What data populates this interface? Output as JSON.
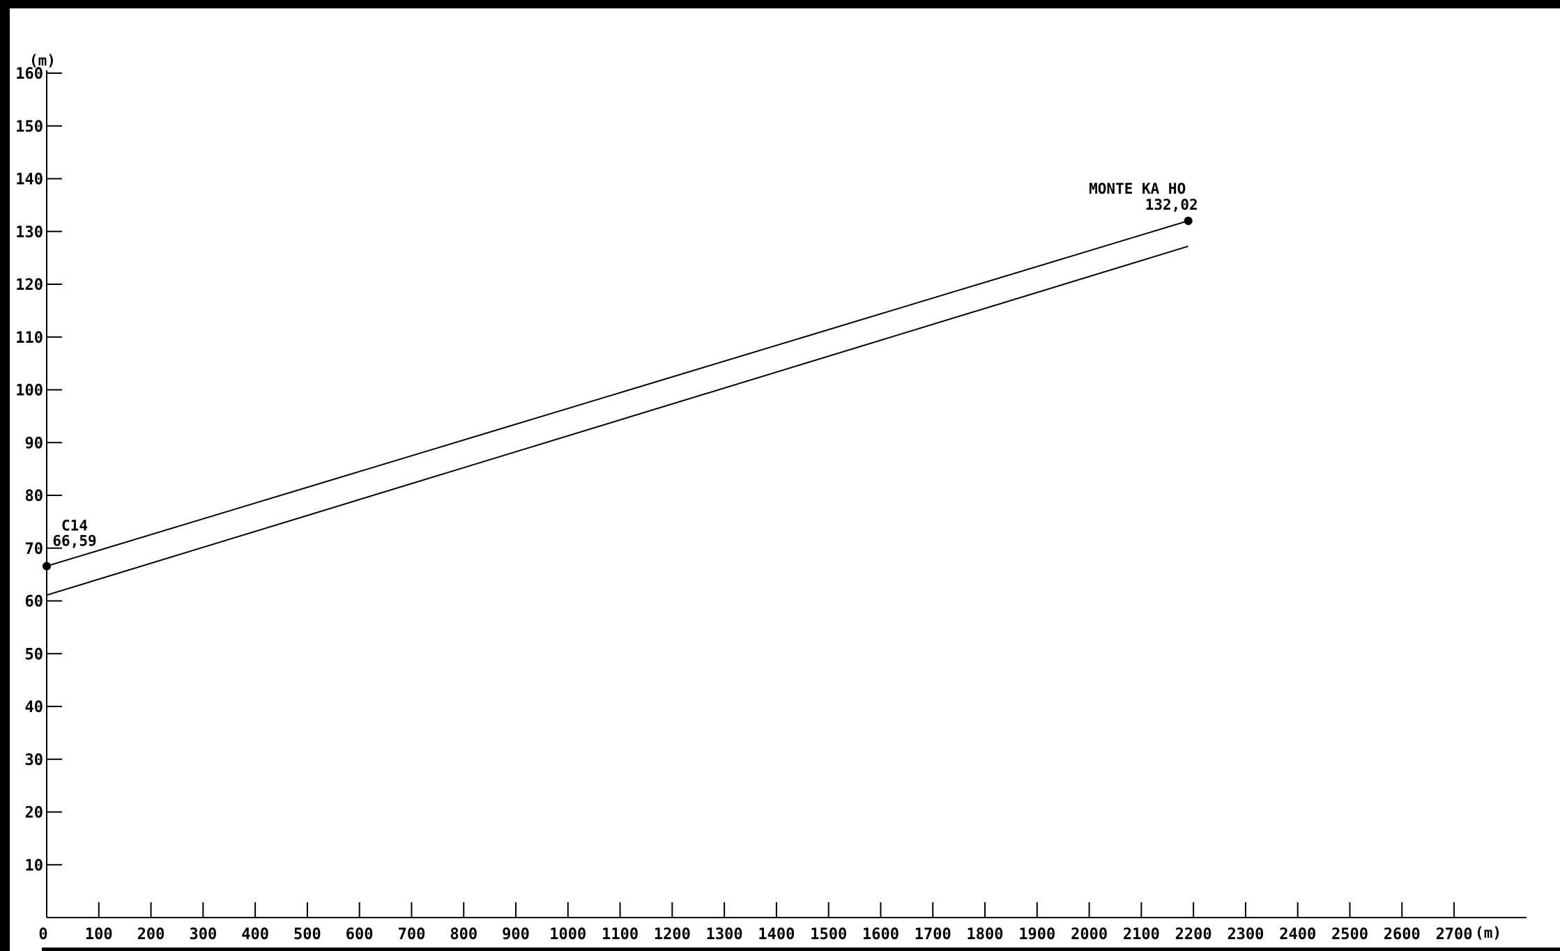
{
  "chart_data": {
    "type": "line",
    "title": "",
    "xlabel": "(m)",
    "ylabel": "(m)",
    "xlim": [
      0,
      2800
    ],
    "ylim": [
      0,
      160
    ],
    "x_ticks": [
      {
        "value": 0,
        "label": "0"
      },
      {
        "value": 100,
        "label": "100"
      },
      {
        "value": 200,
        "label": "200"
      },
      {
        "value": 300,
        "label": "300"
      },
      {
        "value": 400,
        "label": "400"
      },
      {
        "value": 500,
        "label": "500"
      },
      {
        "value": 600,
        "label": "600"
      },
      {
        "value": 700,
        "label": "700"
      },
      {
        "value": 800,
        "label": "800"
      },
      {
        "value": 900,
        "label": "900"
      },
      {
        "value": 1000,
        "label": "1000"
      },
      {
        "value": 1100,
        "label": "1100"
      },
      {
        "value": 1200,
        "label": "1200"
      },
      {
        "value": 1300,
        "label": "1300"
      },
      {
        "value": 1400,
        "label": "1400"
      },
      {
        "value": 1500,
        "label": "1500"
      },
      {
        "value": 1600,
        "label": "1600"
      },
      {
        "value": 1700,
        "label": "1700"
      },
      {
        "value": 1800,
        "label": "1800"
      },
      {
        "value": 1900,
        "label": "1900"
      },
      {
        "value": 2000,
        "label": "2000"
      },
      {
        "value": 2100,
        "label": "2100"
      },
      {
        "value": 2200,
        "label": "2200"
      },
      {
        "value": 2300,
        "label": "2300"
      },
      {
        "value": 2400,
        "label": "2400"
      },
      {
        "value": 2500,
        "label": "2500"
      },
      {
        "value": 2600,
        "label": "2600"
      },
      {
        "value": 2700,
        "label": "2700"
      }
    ],
    "y_ticks": [
      {
        "value": 10,
        "label": "10"
      },
      {
        "value": 20,
        "label": "20"
      },
      {
        "value": 30,
        "label": "30"
      },
      {
        "value": 40,
        "label": "40"
      },
      {
        "value": 50,
        "label": "50"
      },
      {
        "value": 60,
        "label": "60"
      },
      {
        "value": 70,
        "label": "70"
      },
      {
        "value": 80,
        "label": "80"
      },
      {
        "value": 90,
        "label": "90"
      },
      {
        "value": 100,
        "label": "100"
      },
      {
        "value": 110,
        "label": "110"
      },
      {
        "value": 120,
        "label": "120"
      },
      {
        "value": 130,
        "label": "130"
      },
      {
        "value": 140,
        "label": "140"
      },
      {
        "value": 150,
        "label": "150"
      },
      {
        "value": 160,
        "label": "160"
      }
    ],
    "series": [
      {
        "x": [
          0,
          2190
        ],
        "y": [
          66.59,
          132.02
        ]
      },
      {
        "x": [
          0,
          2190
        ],
        "y": [
          61.1,
          127.2
        ]
      }
    ],
    "annotations": [
      {
        "x": 0,
        "y": 66.59,
        "name": "C14",
        "value": "66,59"
      },
      {
        "x": 2190,
        "y": 132.02,
        "name": "MONTE KA HO",
        "value": "132,02"
      }
    ],
    "grid": false,
    "legend": "none"
  }
}
